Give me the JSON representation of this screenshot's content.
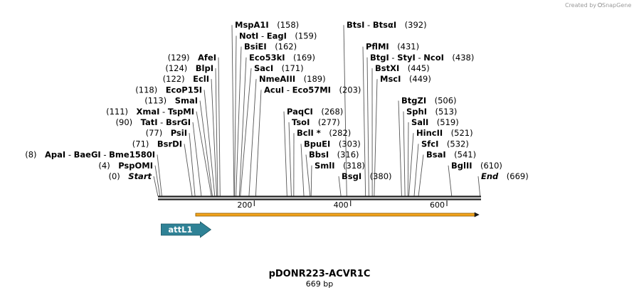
{
  "credit": {
    "prefix": "Created by",
    "brand": "SnapGene"
  },
  "plasmid": {
    "name": "pDONR223-ACVR1C",
    "length_label": "669 bp",
    "length": 669
  },
  "ruler": {
    "ticks": [
      200,
      400,
      600
    ]
  },
  "sites": [
    {
      "id": "start",
      "parts": [
        "Start"
      ],
      "pos": 0,
      "pos_label": "(0)",
      "italic": true
    },
    {
      "id": "pspomi",
      "parts": [
        "PspOMI"
      ],
      "pos": 4,
      "pos_label": "(4)"
    },
    {
      "id": "apai",
      "parts": [
        "ApaI",
        "BaeGI",
        "Bme1580I"
      ],
      "pos": 8,
      "pos_label": "(8)"
    },
    {
      "id": "bsrdi",
      "parts": [
        "BsrDI"
      ],
      "pos": 71,
      "pos_label": "(71)"
    },
    {
      "id": "psii",
      "parts": [
        "PsiI"
      ],
      "pos": 77,
      "pos_label": "(77)"
    },
    {
      "id": "tati",
      "parts": [
        "TatI",
        "BsrGI"
      ],
      "pos": 90,
      "pos_label": "(90)"
    },
    {
      "id": "xmai",
      "parts": [
        "XmaI",
        "TspMI"
      ],
      "pos": 111,
      "pos_label": "(111)"
    },
    {
      "id": "smai",
      "parts": [
        "SmaI"
      ],
      "pos": 113,
      "pos_label": "(113)"
    },
    {
      "id": "ecop15i",
      "parts": [
        "EcoP15I"
      ],
      "pos": 118,
      "pos_label": "(118)"
    },
    {
      "id": "ecli",
      "parts": [
        "EclI"
      ],
      "pos": 122,
      "pos_label": "(122)"
    },
    {
      "id": "blpi",
      "parts": [
        "BlpI"
      ],
      "pos": 124,
      "pos_label": "(124)"
    },
    {
      "id": "afei",
      "parts": [
        "AfeI"
      ],
      "pos": 129,
      "pos_label": "(129)"
    },
    {
      "id": "mspa1i",
      "parts": [
        "MspA1I"
      ],
      "pos": 158,
      "pos_label": "(158)"
    },
    {
      "id": "noti",
      "parts": [
        "NotI",
        "EagI"
      ],
      "pos": 159,
      "pos_label": "(159)"
    },
    {
      "id": "bsiei",
      "parts": [
        "BsiEI"
      ],
      "pos": 162,
      "pos_label": "(162)"
    },
    {
      "id": "eco53ki",
      "parts": [
        "Eco53kI"
      ],
      "pos": 169,
      "pos_label": "(169)"
    },
    {
      "id": "saci",
      "parts": [
        "SacI"
      ],
      "pos": 171,
      "pos_label": "(171)"
    },
    {
      "id": "nmeaiii",
      "parts": [
        "NmeAIII"
      ],
      "pos": 189,
      "pos_label": "(189)"
    },
    {
      "id": "acui",
      "parts": [
        "AcuI",
        "Eco57MI"
      ],
      "pos": 203,
      "pos_label": "(203)"
    },
    {
      "id": "paqci",
      "parts": [
        "PaqCI"
      ],
      "pos": 268,
      "pos_label": "(268)"
    },
    {
      "id": "tsoi",
      "parts": [
        "TsoI"
      ],
      "pos": 277,
      "pos_label": "(277)"
    },
    {
      "id": "bcli",
      "parts": [
        "BclI *"
      ],
      "pos": 282,
      "pos_label": "(282)"
    },
    {
      "id": "bpuei",
      "parts": [
        "BpuEI"
      ],
      "pos": 303,
      "pos_label": "(303)"
    },
    {
      "id": "bbsi",
      "parts": [
        "BbsI"
      ],
      "pos": 316,
      "pos_label": "(316)"
    },
    {
      "id": "smli",
      "parts": [
        "SmlI"
      ],
      "pos": 318,
      "pos_label": "(318)"
    },
    {
      "id": "bsgi",
      "parts": [
        "BsgI"
      ],
      "pos": 380,
      "pos_label": "(380)"
    },
    {
      "id": "btsi",
      "parts": [
        "BtsI",
        "BtsαI"
      ],
      "pos": 392,
      "pos_label": "(392)"
    },
    {
      "id": "pflmi",
      "parts": [
        "PflMI"
      ],
      "pos": 431,
      "pos_label": "(431)"
    },
    {
      "id": "btgi",
      "parts": [
        "BtgI",
        "StyI",
        "NcoI"
      ],
      "pos": 438,
      "pos_label": "(438)"
    },
    {
      "id": "bstxi",
      "parts": [
        "BstXI"
      ],
      "pos": 445,
      "pos_label": "(445)"
    },
    {
      "id": "msci",
      "parts": [
        "MscI"
      ],
      "pos": 449,
      "pos_label": "(449)"
    },
    {
      "id": "btgzi",
      "parts": [
        "BtgZI"
      ],
      "pos": 506,
      "pos_label": "(506)"
    },
    {
      "id": "sphi",
      "parts": [
        "SphI"
      ],
      "pos": 513,
      "pos_label": "(513)"
    },
    {
      "id": "sali",
      "parts": [
        "SalI"
      ],
      "pos": 519,
      "pos_label": "(519)"
    },
    {
      "id": "hincii",
      "parts": [
        "HincII"
      ],
      "pos": 521,
      "pos_label": "(521)"
    },
    {
      "id": "sfci",
      "parts": [
        "SfcI"
      ],
      "pos": 532,
      "pos_label": "(532)"
    },
    {
      "id": "bsai",
      "parts": [
        "BsaI"
      ],
      "pos": 541,
      "pos_label": "(541)"
    },
    {
      "id": "bglii",
      "parts": [
        "BglII"
      ],
      "pos": 610,
      "pos_label": "(610)"
    },
    {
      "id": "end",
      "parts": [
        "End"
      ],
      "pos": 669,
      "pos_label": "(669)",
      "italic": true
    }
  ],
  "features": [
    {
      "name": "attL1",
      "start": 8,
      "end": 107,
      "color": "#2f8296",
      "direction": "forward"
    }
  ],
  "orf": {
    "start": 79,
    "end": 669,
    "color": "#f3a41c",
    "direction": "forward"
  }
}
